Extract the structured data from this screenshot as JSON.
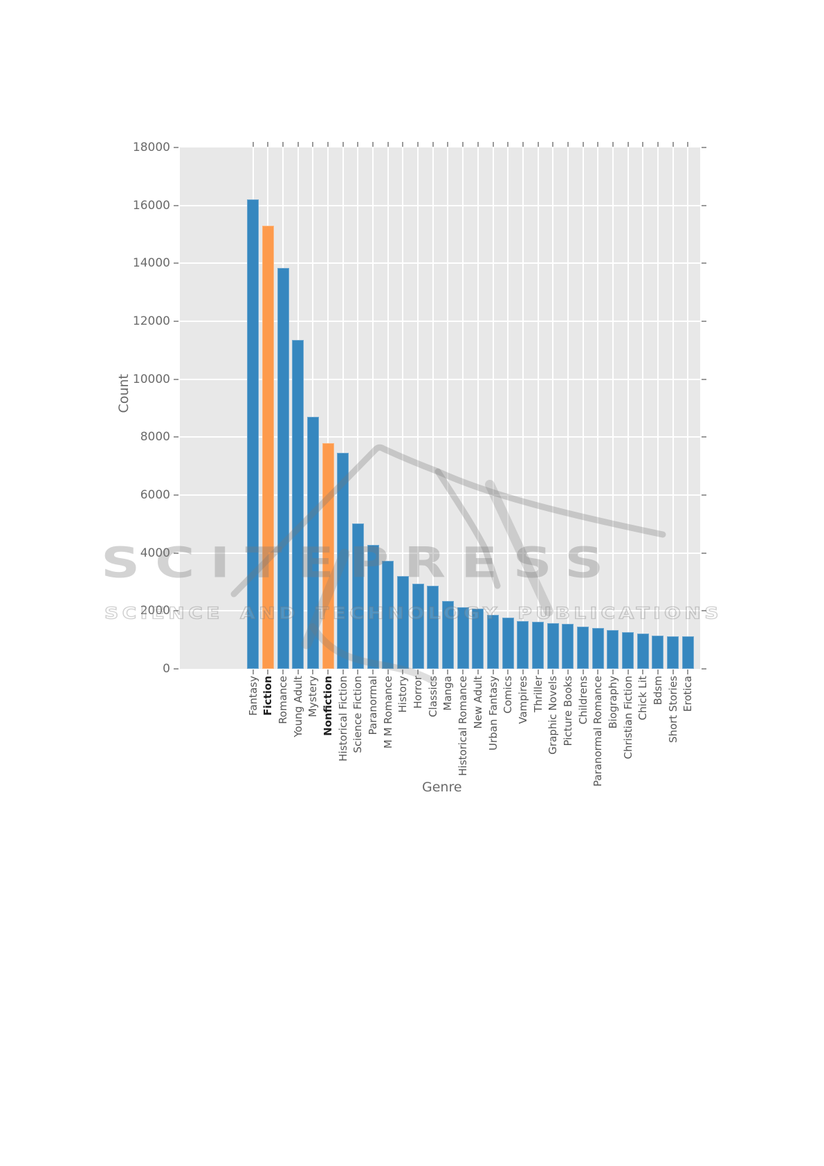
{
  "watermark": {
    "title": "SCITEPRESS",
    "subtitle": "SCIENCE AND TECHNOLOGY PUBLICATIONS"
  },
  "chart_data": {
    "type": "bar",
    "title": "",
    "xlabel": "Genre",
    "ylabel": "Count",
    "ylim": [
      0,
      18000
    ],
    "yticks": [
      0,
      2000,
      4000,
      6000,
      8000,
      10000,
      12000,
      14000,
      16000,
      18000
    ],
    "grid": true,
    "legend": false,
    "panel_color": "#e8e8e8",
    "grid_color": "#ffffff",
    "bar_color": "#3687bf",
    "highlight_color": "#fd9a4c",
    "highlighted_categories": [
      "Fiction",
      "Nonfiction"
    ],
    "categories": [
      "Fantasy",
      "Fiction",
      "Romance",
      "Young Adult",
      "Mystery",
      "Nonfiction",
      "Historical Fiction",
      "Science Fiction",
      "Paranormal",
      "M M Romance",
      "History",
      "Horror",
      "Classics",
      "Manga",
      "Historical Romance",
      "New Adult",
      "Urban Fantasy",
      "Comics",
      "Vampires",
      "Thriller",
      "Graphic Novels",
      "Picture Books",
      "Childrens",
      "Paranormal Romance",
      "Biography",
      "Christian Fiction",
      "Chick Lit",
      "Bdsm",
      "Short Stories",
      "Erotica"
    ],
    "values": [
      16200,
      15300,
      13850,
      11350,
      8700,
      7800,
      7470,
      5010,
      4280,
      3720,
      3200,
      2930,
      2860,
      2340,
      2120,
      2070,
      1860,
      1760,
      1650,
      1620,
      1590,
      1550,
      1460,
      1410,
      1340,
      1270,
      1210,
      1160,
      1130,
      1120
    ]
  }
}
